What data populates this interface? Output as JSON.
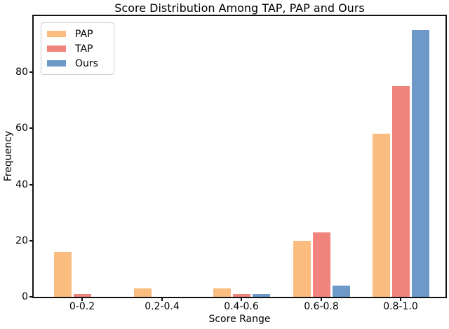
{
  "chart_data": {
    "type": "bar",
    "title": "Score Distribution Among TAP, PAP and Ours",
    "xlabel": "Score Range",
    "ylabel": "Frequency",
    "categories": [
      "0-0.2",
      "0.2-0.4",
      "0.4-0.6",
      "0.6-0.8",
      "0.8-1.0"
    ],
    "series": [
      {
        "name": "PAP",
        "color": "#fbbc80",
        "values": [
          16,
          3,
          3,
          20,
          58
        ]
      },
      {
        "name": "TAP",
        "color": "#f1837d",
        "values": [
          1,
          0,
          1,
          23,
          75
        ]
      },
      {
        "name": "Ours",
        "color": "#6c99c8",
        "values": [
          0,
          0,
          1,
          4,
          95
        ]
      }
    ],
    "ylim": [
      0,
      100
    ],
    "yticks": [
      0,
      20,
      40,
      60,
      80
    ],
    "legend_position": "upper left",
    "grid": false,
    "axis_color": "#111111"
  }
}
